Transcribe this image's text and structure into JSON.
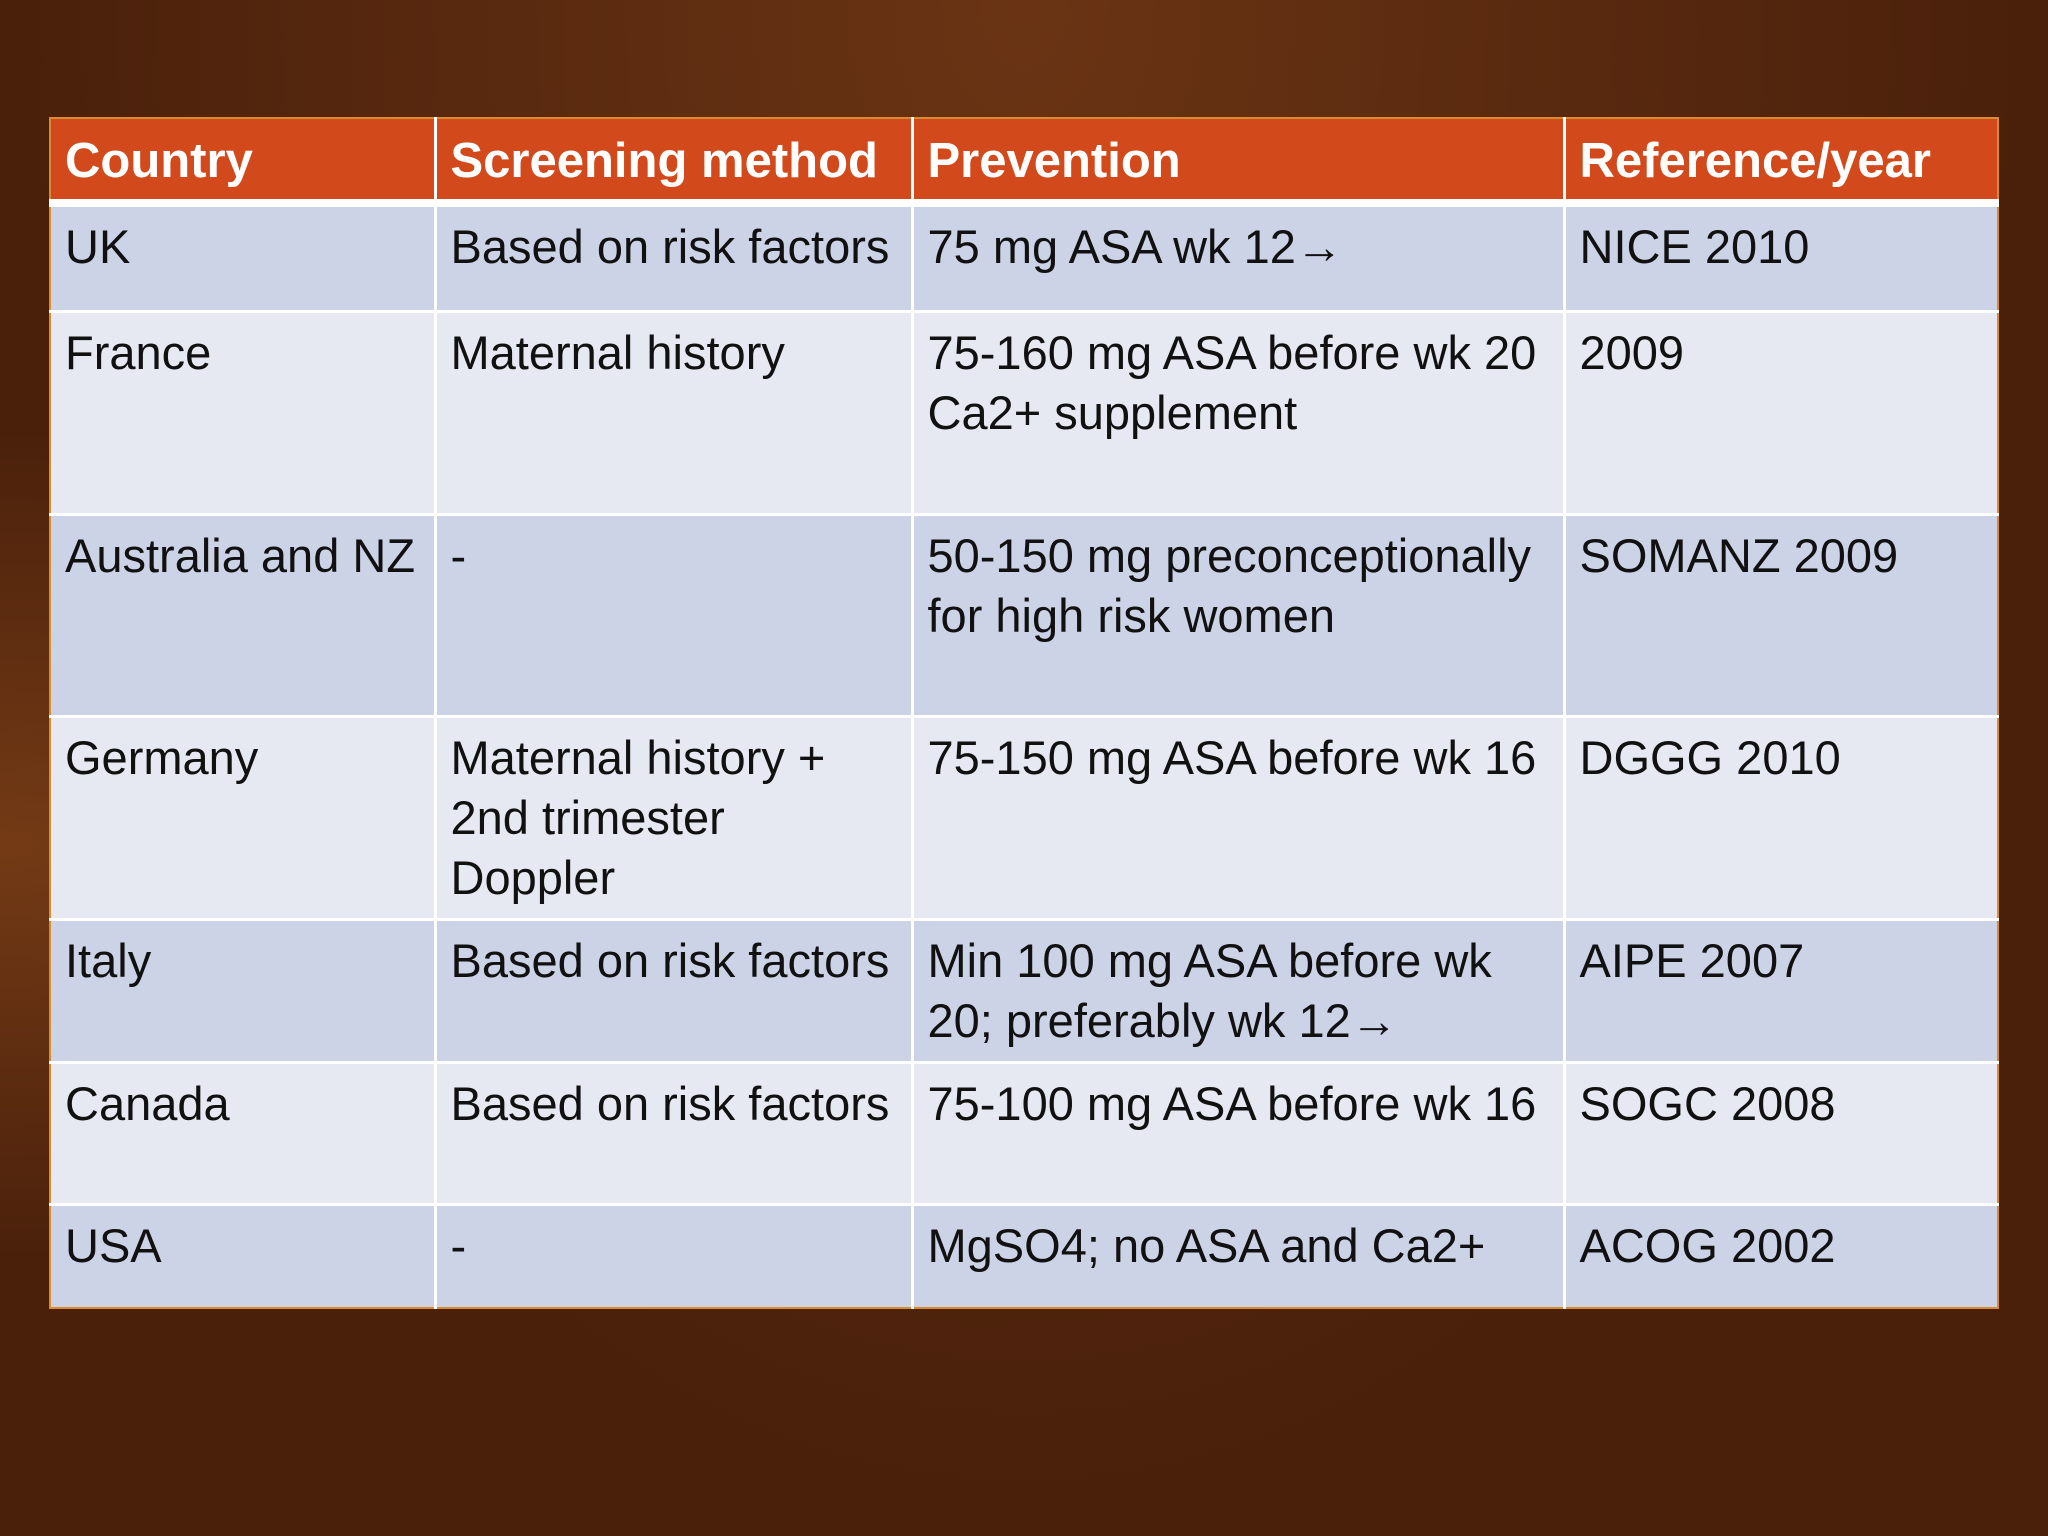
{
  "colors": {
    "header_bg": "#d24a1c",
    "row_dark_bg": "#ccd3e6",
    "row_light_bg": "#e7e9f2",
    "slide_bg": "#46200c"
  },
  "table": {
    "headers": [
      "Country",
      "Screening method",
      "Prevention",
      "Reference/year"
    ],
    "rows": [
      [
        "UK",
        "Based on risk factors",
        "75 mg ASA wk 12→",
        "NICE 2010"
      ],
      [
        "France",
        "Maternal history",
        "75-160 mg ASA before wk 20\nCa2+ supplement",
        "2009"
      ],
      [
        "Australia and NZ",
        "-",
        "50-150 mg preconceptionally for high risk women",
        "SOMANZ 2009"
      ],
      [
        "Germany",
        "Maternal history + 2nd trimester Doppler",
        "75-150 mg ASA  before wk 16",
        "DGGG 2010"
      ],
      [
        "Italy",
        "Based on risk factors",
        "Min 100 mg ASA before wk 20; preferably  wk 12→",
        "AIPE 2007"
      ],
      [
        "Canada",
        "Based on risk factors",
        "75-100 mg ASA before wk 16",
        "SOGC 2008"
      ],
      [
        "USA",
        "-",
        "MgSO4; no ASA and Ca2+",
        "ACOG 2002"
      ]
    ]
  }
}
